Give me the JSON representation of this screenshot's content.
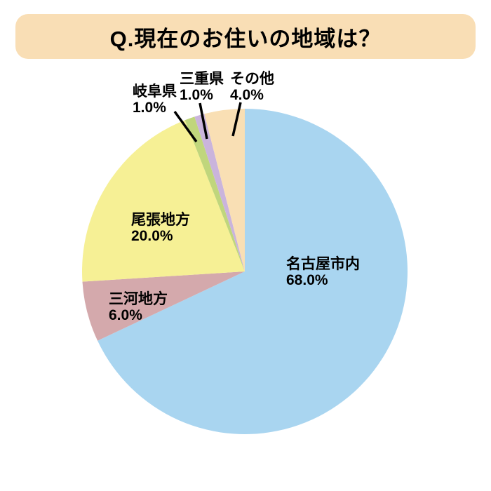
{
  "header": {
    "title": "Q.現在のお住いの地域は？",
    "background_color": "#F9DEB5"
  },
  "chart_data": {
    "type": "pie",
    "title": "Q.現在のお住いの地域は？",
    "direction": "clockwise",
    "start_position": "12-oclock",
    "legend_position": "none",
    "unit": "%",
    "slices": [
      {
        "label": "名古屋市内",
        "value": 68.0,
        "pct_label": "68.0%",
        "color": "#A9D5F0"
      },
      {
        "label": "三河地方",
        "value": 6.0,
        "pct_label": "6.0%",
        "color": "#D4A9AC"
      },
      {
        "label": "尾張地方",
        "value": 20.0,
        "pct_label": "20.0%",
        "color": "#F6F095"
      },
      {
        "label": "岐阜県",
        "value": 1.0,
        "pct_label": "1.0%",
        "color": "#C0D67C"
      },
      {
        "label": "三重県",
        "value": 1.0,
        "pct_label": "1.0%",
        "color": "#CAB4DC"
      },
      {
        "label": "その他",
        "value": 4.0,
        "pct_label": "4.0%",
        "color": "#F9DFB4"
      }
    ]
  }
}
